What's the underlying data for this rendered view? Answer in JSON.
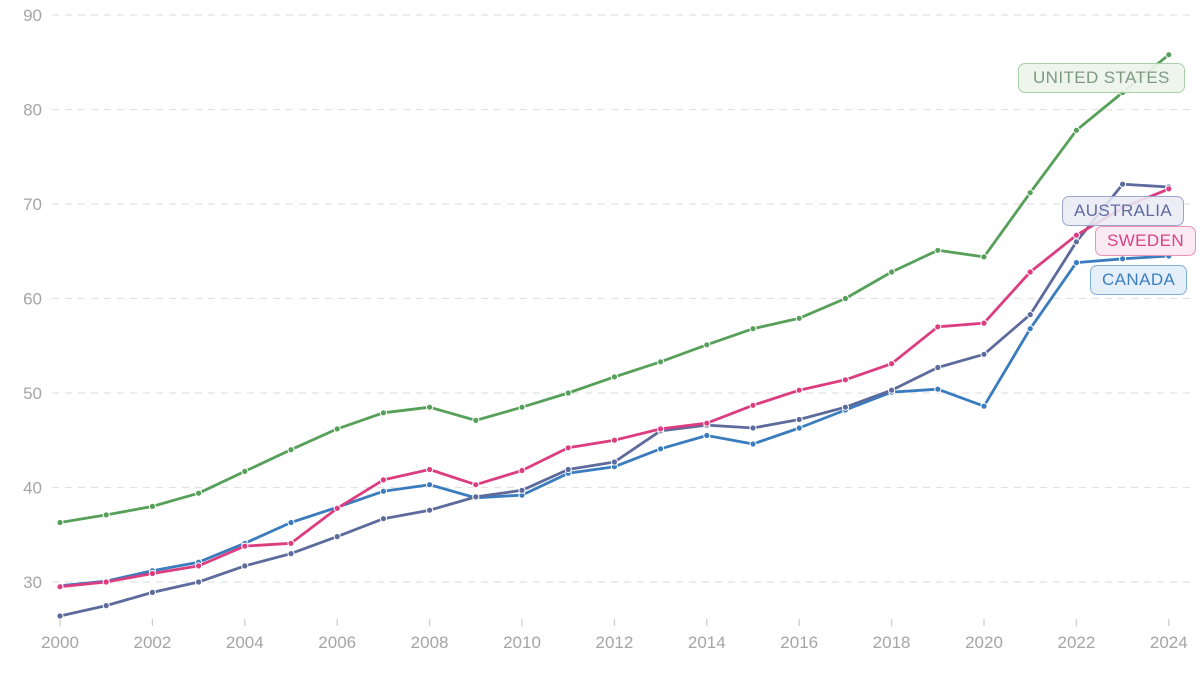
{
  "page": {
    "background": "#ffffff",
    "axis_text_color": "#a5a5a5",
    "grid_color": "#e2e2e2",
    "tick_color": "#cfcfcf"
  },
  "chart_data": {
    "type": "line",
    "title": "",
    "xlabel": "",
    "ylabel": "",
    "x": [
      2000,
      2001,
      2002,
      2003,
      2004,
      2005,
      2006,
      2007,
      2008,
      2009,
      2010,
      2011,
      2012,
      2013,
      2014,
      2015,
      2016,
      2017,
      2018,
      2019,
      2020,
      2021,
      2022,
      2023,
      2024
    ],
    "x_tick_years": [
      2000,
      2002,
      2004,
      2006,
      2008,
      2010,
      2012,
      2014,
      2016,
      2018,
      2020,
      2022,
      2024
    ],
    "y_ticks": [
      30,
      40,
      50,
      60,
      70,
      80,
      90
    ],
    "ylim": [
      26,
      90
    ],
    "xlim": [
      2000,
      2024
    ],
    "grid": "horizontal-dashed",
    "legend_position": "end-of-line-labels",
    "series": [
      {
        "name": "UNITED STATES",
        "color": "#57a05a",
        "values": [
          36.3,
          37.1,
          38.0,
          39.4,
          41.7,
          44.0,
          46.2,
          47.9,
          48.5,
          47.1,
          48.5,
          50.0,
          51.7,
          53.3,
          55.1,
          56.8,
          57.9,
          60.0,
          62.8,
          65.1,
          64.4,
          71.2,
          77.8,
          81.8,
          85.8
        ]
      },
      {
        "name": "CANADA",
        "color": "#3a7cbe",
        "values": [
          29.6,
          30.1,
          31.2,
          32.1,
          34.1,
          36.3,
          37.9,
          39.6,
          40.3,
          38.9,
          39.2,
          41.5,
          42.2,
          44.1,
          45.5,
          44.6,
          46.3,
          48.2,
          50.1,
          50.4,
          48.6,
          56.8,
          63.8,
          64.2,
          64.5
        ]
      },
      {
        "name": "AUSTRALIA",
        "color": "#5c6b9c",
        "values": [
          26.4,
          27.5,
          28.9,
          30.0,
          31.7,
          33.0,
          34.8,
          36.7,
          37.6,
          39.0,
          39.7,
          41.9,
          42.7,
          46.0,
          46.6,
          46.3,
          47.2,
          48.5,
          50.3,
          52.7,
          54.1,
          58.3,
          66.0,
          72.1,
          71.8
        ]
      },
      {
        "name": "SWEDEN",
        "color": "#dc3d80",
        "values": [
          29.5,
          30.0,
          30.9,
          31.7,
          33.8,
          34.1,
          37.8,
          40.8,
          41.9,
          40.3,
          41.8,
          44.2,
          45.0,
          46.2,
          46.8,
          48.7,
          50.3,
          51.4,
          53.1,
          57.0,
          57.4,
          62.8,
          66.7,
          69.6,
          71.6
        ]
      }
    ]
  },
  "series_labels": [
    {
      "id": "united-states",
      "text": "UNITED STATES",
      "text_color": "#7d9a80",
      "fill": "rgba(237,244,235,0.92)",
      "border": "#a9cfa9"
    },
    {
      "id": "australia",
      "text": "AUSTRALIA",
      "text_color": "#5e6b9e",
      "fill": "rgba(233,235,244,0.88)",
      "border": "#9ba6cc"
    },
    {
      "id": "sweden",
      "text": "SWEDEN",
      "text_color": "#d84287",
      "fill": "rgba(252,232,241,0.92)",
      "border": "#ec92b9"
    },
    {
      "id": "canada",
      "text": "CANADA",
      "text_color": "#3d80c0",
      "fill": "rgba(226,238,248,0.92)",
      "border": "#7fafd8"
    }
  ]
}
